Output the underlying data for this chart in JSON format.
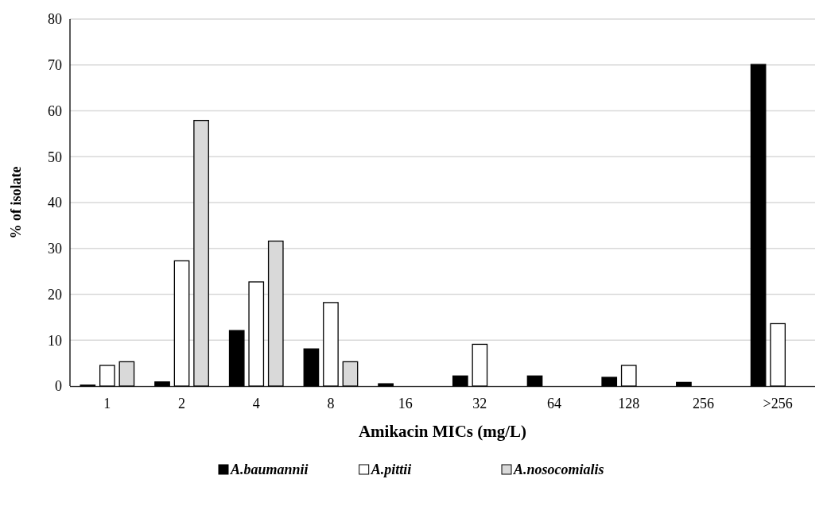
{
  "chart_data": {
    "type": "bar",
    "xlabel": "Amikacin MICs (mg/L)",
    "ylabel": "% of isolate",
    "categories": [
      "1",
      "2",
      "4",
      "8",
      "16",
      "32",
      "64",
      "128",
      "256",
      ">256"
    ],
    "series": [
      {
        "name": "A.baumannii",
        "color": "#000000",
        "values": [
          0.2,
          0.9,
          12.1,
          8.1,
          0.5,
          2.2,
          2.2,
          1.9,
          0.8,
          70.1
        ]
      },
      {
        "name": "A.pittii",
        "color": "#ffffff",
        "values": [
          4.5,
          27.3,
          22.7,
          18.2,
          0,
          9.1,
          0,
          4.5,
          0,
          13.6
        ]
      },
      {
        "name": "A.nosocomialis",
        "color": "#d9d9d9",
        "values": [
          5.3,
          57.9,
          31.6,
          5.3,
          0,
          0,
          0,
          0,
          0,
          0
        ]
      }
    ],
    "ylim": [
      0,
      80
    ],
    "yticks": [
      0,
      10,
      20,
      30,
      40,
      50,
      60,
      70,
      80
    ],
    "grid": "y",
    "legend": "bottom"
  }
}
